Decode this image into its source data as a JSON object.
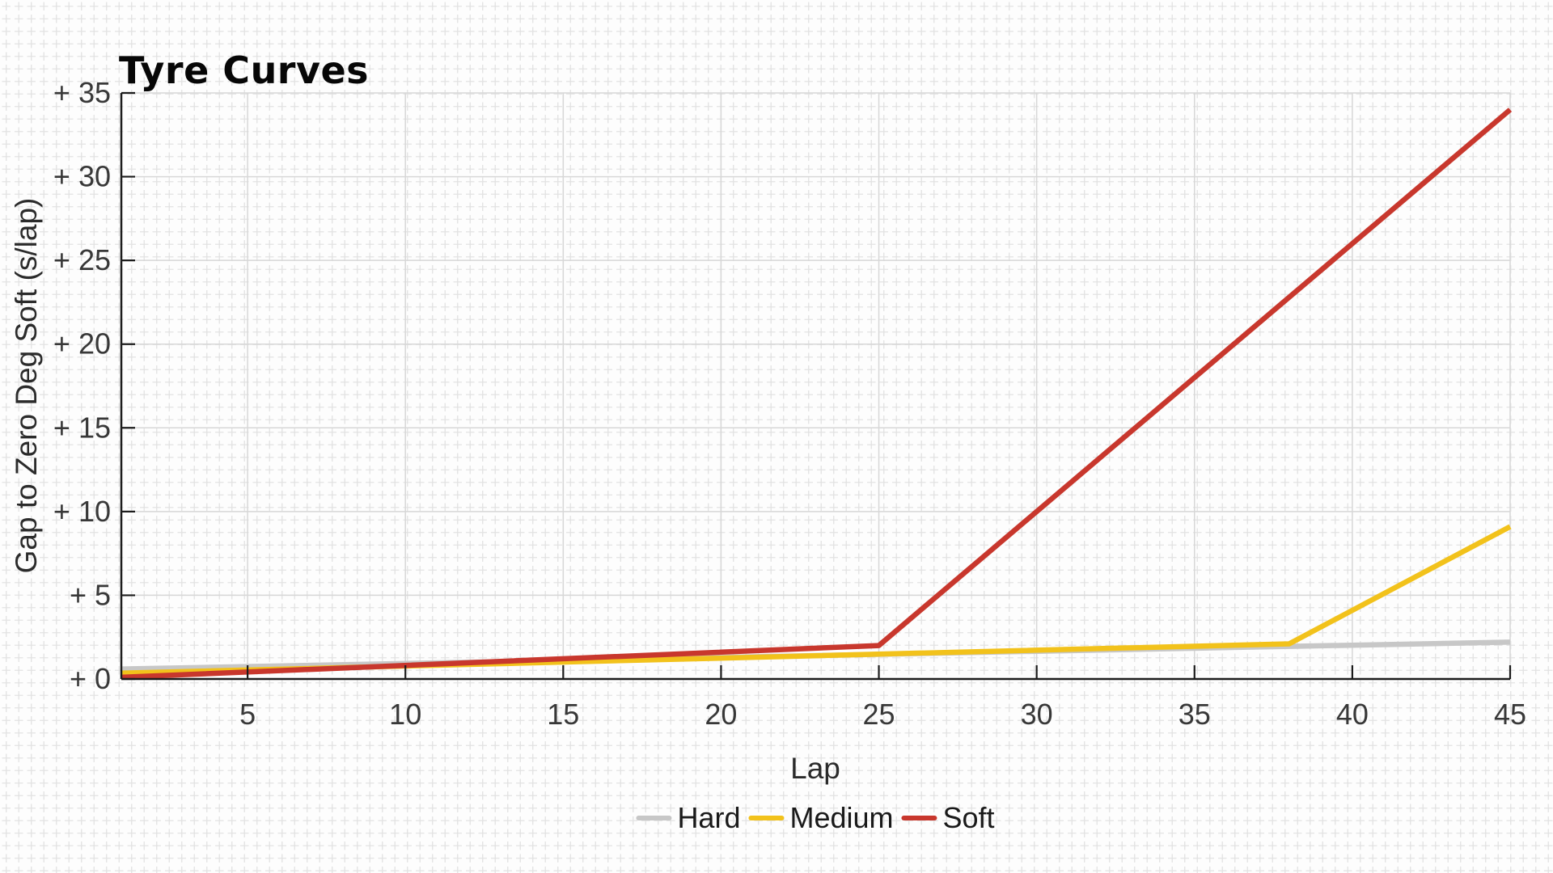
{
  "chart_data": {
    "type": "line",
    "title": "Tyre Curves",
    "xlabel": "Lap",
    "ylabel": "Gap to Zero Deg Soft (s/lap)",
    "xlim": [
      1,
      45
    ],
    "ylim": [
      0,
      35
    ],
    "grid": true,
    "legend_position": "bottom-center",
    "x_ticks": [
      {
        "value": 5,
        "label": "5"
      },
      {
        "value": 10,
        "label": "10"
      },
      {
        "value": 15,
        "label": "15"
      },
      {
        "value": 20,
        "label": "20"
      },
      {
        "value": 25,
        "label": "25"
      },
      {
        "value": 30,
        "label": "30"
      },
      {
        "value": 35,
        "label": "35"
      },
      {
        "value": 40,
        "label": "40"
      },
      {
        "value": 45,
        "label": "45"
      }
    ],
    "y_ticks": [
      {
        "value": 0,
        "label": "+ 0"
      },
      {
        "value": 5,
        "label": "+ 5"
      },
      {
        "value": 10,
        "label": "+ 10"
      },
      {
        "value": 15,
        "label": "+ 15"
      },
      {
        "value": 20,
        "label": "+ 20"
      },
      {
        "value": 25,
        "label": "+ 25"
      },
      {
        "value": 30,
        "label": "+ 30"
      },
      {
        "value": 35,
        "label": "+ 35"
      }
    ],
    "series": [
      {
        "name": "Hard",
        "color": "#c7c7c7",
        "points": [
          [
            1,
            0.6
          ],
          [
            45,
            2.2
          ]
        ]
      },
      {
        "name": "Medium",
        "color": "#f2c21b",
        "points": [
          [
            1,
            0.35
          ],
          [
            38,
            2.1
          ],
          [
            45,
            9.1
          ]
        ]
      },
      {
        "name": "Soft",
        "color": "#c8372d",
        "points": [
          [
            1,
            0.1
          ],
          [
            25,
            2.0
          ],
          [
            45,
            34.0
          ]
        ]
      }
    ]
  },
  "style": {
    "background_color": "#fdfdfd",
    "fine_grid_color": "#e2e2e2",
    "major_grid_color": "#d7d7d7",
    "axis_color": "#1c1c1c",
    "tick_label_color": "#383838"
  }
}
